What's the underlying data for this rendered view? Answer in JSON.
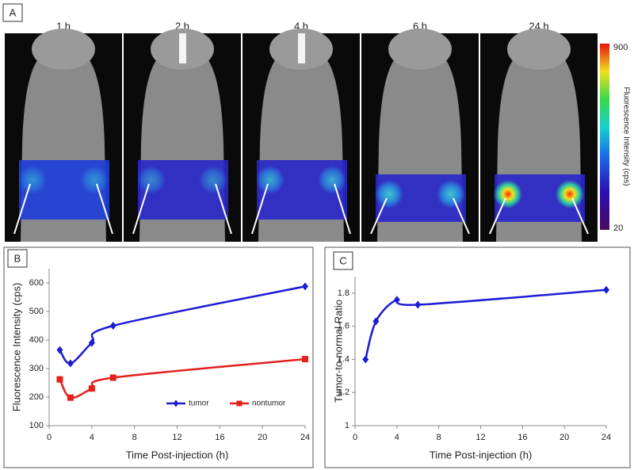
{
  "panel_a": {
    "panel_label": "A",
    "time_labels": [
      "1 h",
      "2 h",
      "4 h",
      "6 h",
      "24 h"
    ],
    "colorbar": {
      "title": "Fluorescence Intensity (cps)",
      "max": 900,
      "min": 20
    }
  },
  "chart_data": [
    {
      "type": "line",
      "panel_label": "B",
      "x_label": "Time Post-injection (h)",
      "y_label": "Fluorescence Intensity (cps)",
      "x": [
        1,
        2,
        4,
        6,
        24
      ],
      "series": [
        {
          "name": "tumor",
          "color": "#1c1cd6",
          "marker": "diamond",
          "values": [
            365,
            318,
            390,
            450,
            588
          ]
        },
        {
          "name": "nontumor",
          "color": "#e3201c",
          "marker": "square",
          "values": [
            262,
            198,
            230,
            268,
            333
          ]
        }
      ],
      "xlim": [
        0,
        24
      ],
      "xticks": [
        0,
        4,
        8,
        12,
        16,
        20,
        24
      ],
      "ylim": [
        100,
        650
      ],
      "yticks": [
        100,
        200,
        300,
        400,
        500,
        600
      ],
      "legend": "lower right"
    },
    {
      "type": "line",
      "panel_label": "C",
      "x_label": "Time Post-injection (h)",
      "y_label": "Tumor-to-normal Ratio",
      "x": [
        1,
        2,
        4,
        6,
        24
      ],
      "values": [
        1.4,
        1.63,
        1.76,
        1.73,
        1.82
      ],
      "color": "#1c1cd6",
      "marker": "diamond",
      "xlim": [
        0,
        24
      ],
      "xticks": [
        0,
        4,
        8,
        12,
        16,
        20,
        24
      ],
      "ylim": [
        1,
        1.9
      ],
      "yticks": [
        1,
        1.2,
        1.4,
        1.6,
        1.8
      ]
    }
  ]
}
